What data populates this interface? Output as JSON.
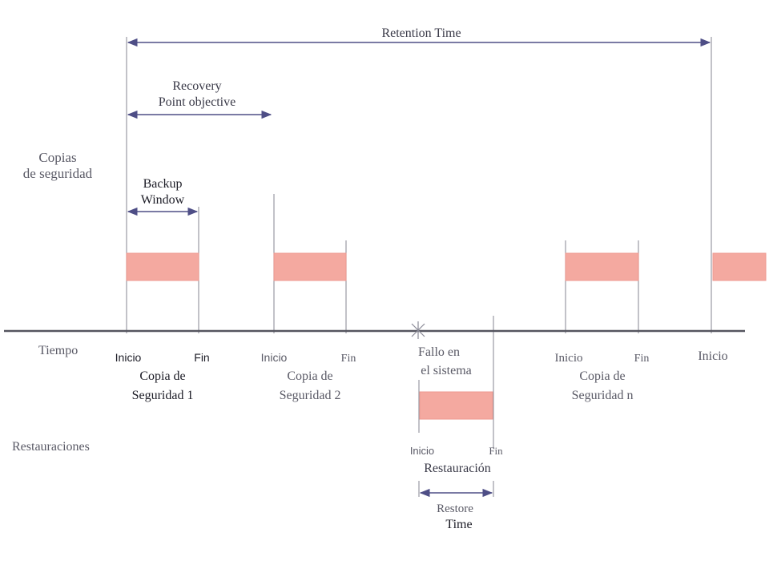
{
  "labels": {
    "retention_time": "Retention Time",
    "rpo_line1": "Recovery",
    "rpo_line2": "Point objective",
    "copias_line1": "Copias",
    "copias_line2": "de seguridad",
    "backup_line1": "Backup",
    "backup_line2": "Window",
    "tiempo": "Tiempo",
    "restauraciones": "Restauraciones",
    "inicio": "Inicio",
    "fin": "Fin",
    "copia_de": "Copia de",
    "seguridad_1": "Seguridad 1",
    "seguridad_2": "Seguridad 2",
    "seguridad_n": "Seguridad n",
    "fallo_line1": "Fallo en",
    "fallo_line2": "el sistema",
    "restauracion": "Restauración",
    "restore_line1": "Restore",
    "restore_line2": "Time"
  },
  "colors": {
    "bar_fill": "#f4a9a0",
    "bar_stroke": "#ee9990",
    "arrow": "#4e4e86",
    "axis": "#55555f",
    "guide": "#9a9aa4"
  }
}
